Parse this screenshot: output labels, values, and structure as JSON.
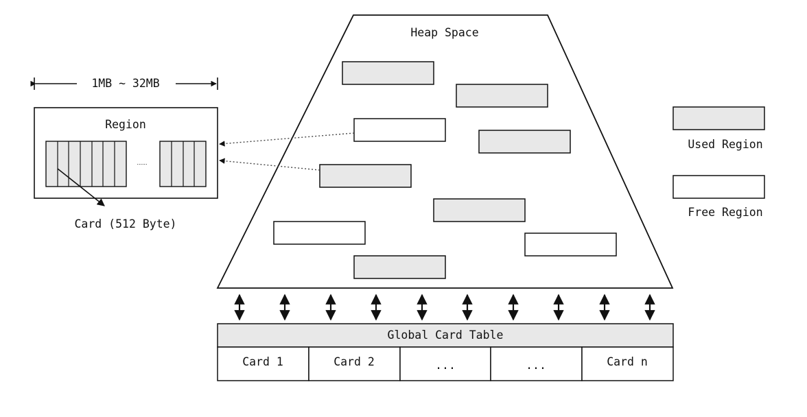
{
  "heap": {
    "title": "Heap Space"
  },
  "region": {
    "size_label": "1MB ~ 32MB",
    "title": "Region",
    "ellipsis": "......",
    "card_label": "Card (512 Byte)"
  },
  "legend": {
    "used": "Used Region",
    "free": "Free Region"
  },
  "card_table": {
    "title": "Global Card Table",
    "cells": [
      "Card 1",
      "Card 2",
      "...",
      "...",
      "Card n"
    ]
  },
  "colors": {
    "used_fill": "#e8e8e8",
    "free_fill": "#ffffff",
    "stroke": "#111111"
  }
}
